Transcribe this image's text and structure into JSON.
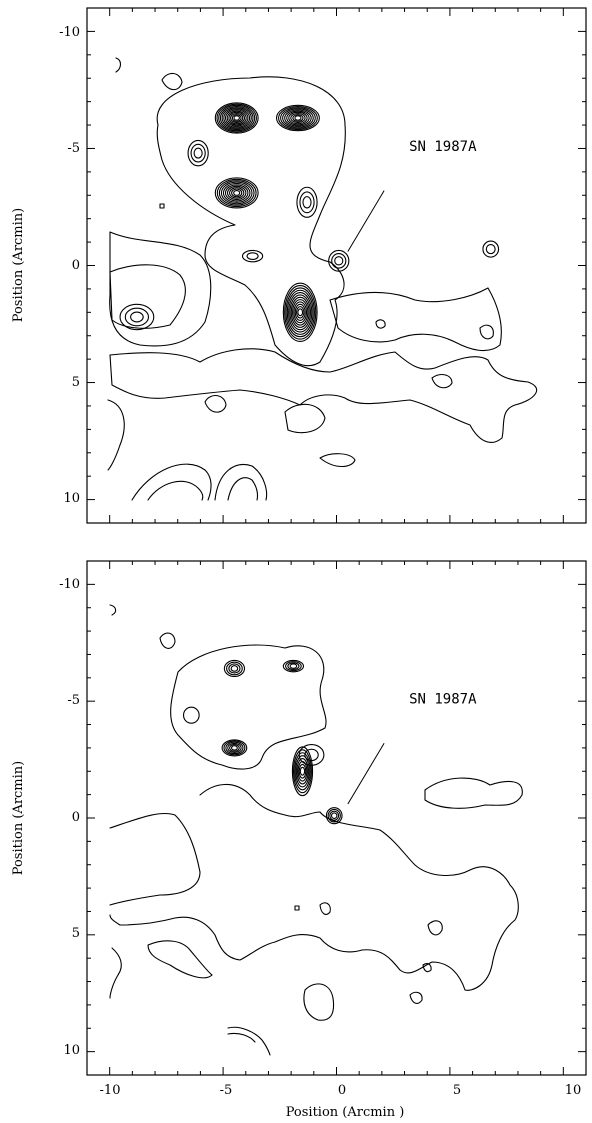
{
  "chart_data": [
    {
      "type": "contour",
      "panel": "top",
      "xlim": [
        -11,
        11
      ],
      "ylim": [
        11,
        -11
      ],
      "xticks": [
        "-10",
        "-5",
        "0",
        "5",
        "10"
      ],
      "yticks": [
        "-10",
        "-5",
        "0",
        "5",
        "10"
      ],
      "xticklabels_shown": false,
      "xlabel": "",
      "ylabel": "Position (Arcmin)",
      "grid": false,
      "annotation": {
        "text": "SN 1987A",
        "x": 3.2,
        "y": -4.9,
        "pointer_from": [
          2.1,
          -3.2
        ],
        "pointer_to": [
          0.5,
          -0.6
        ]
      },
      "peaks": [
        {
          "x": -4.4,
          "y": -6.3,
          "levels": 12,
          "rx": 0.9,
          "ry": 0.6
        },
        {
          "x": -1.7,
          "y": -6.3,
          "levels": 10,
          "rx": 0.9,
          "ry": 0.5
        },
        {
          "x": -4.4,
          "y": -3.1,
          "levels": 10,
          "rx": 0.9,
          "ry": 0.6
        },
        {
          "x": -1.6,
          "y": 2.0,
          "levels": 12,
          "rx": 0.7,
          "ry": 1.2
        },
        {
          "x": 0.1,
          "y": -0.2,
          "levels": 3,
          "rx": 0.4,
          "ry": 0.4
        },
        {
          "x": -6.1,
          "y": -4.8,
          "levels": 3,
          "rx": 0.4,
          "ry": 0.5
        },
        {
          "x": -1.3,
          "y": -2.7,
          "levels": 3,
          "rx": 0.4,
          "ry": 0.6
        },
        {
          "x": -3.7,
          "y": -0.4,
          "levels": 2,
          "rx": 0.4,
          "ry": 0.2
        },
        {
          "x": 6.8,
          "y": -0.7,
          "levels": 2,
          "rx": 0.3,
          "ry": 0.3
        },
        {
          "x": -8.8,
          "y": 2.2,
          "levels": 3,
          "rx": 0.7,
          "ry": 0.5
        }
      ]
    },
    {
      "type": "contour",
      "panel": "bottom",
      "xlim": [
        -11,
        11
      ],
      "ylim": [
        11,
        -11
      ],
      "xticks": [
        "-10",
        "-5",
        "0",
        "5",
        "10"
      ],
      "yticks": [
        "-10",
        "-5",
        "0",
        "5",
        "10"
      ],
      "xlabel": "Position (Arcmin )",
      "ylabel": "Position (Arcmin)",
      "grid": false,
      "annotation": {
        "text": "SN 1987A",
        "x": 3.2,
        "y": -4.9,
        "pointer_from": [
          2.1,
          -3.2
        ],
        "pointer_to": [
          0.5,
          -0.6
        ]
      },
      "peaks": [
        {
          "x": -4.5,
          "y": -6.4,
          "levels": 4,
          "rx": 0.4,
          "ry": 0.3
        },
        {
          "x": -1.9,
          "y": -6.5,
          "levels": 4,
          "rx": 0.4,
          "ry": 0.2
        },
        {
          "x": -4.5,
          "y": -3.0,
          "levels": 6,
          "rx": 0.5,
          "ry": 0.3
        },
        {
          "x": -1.5,
          "y": -2.0,
          "levels": 8,
          "rx": 0.4,
          "ry": 1.0
        },
        {
          "x": -0.1,
          "y": -0.1,
          "levels": 4,
          "rx": 0.3,
          "ry": 0.3
        },
        {
          "x": -6.4,
          "y": -4.4,
          "levels": 1,
          "rx": 0.3,
          "ry": 0.3
        },
        {
          "x": -1.1,
          "y": -2.7,
          "levels": 2,
          "rx": 0.5,
          "ry": 0.4
        }
      ]
    }
  ]
}
